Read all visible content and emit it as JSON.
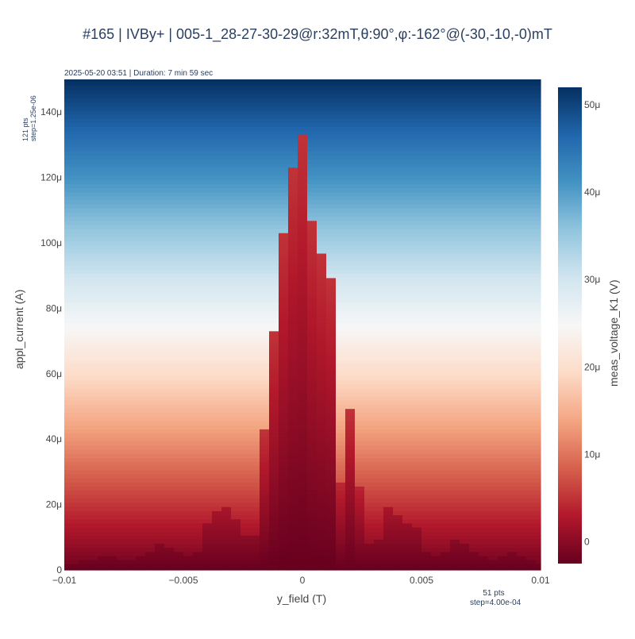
{
  "title": "#165 | IVBy+ | 005-1_28-27-30-29@r:32mT,θ:90°,φ:-162°@(-30,-10,-0)mT",
  "subtitle": "2025-05-20 03:51 | Duration: 7 min 59 sec",
  "y_points_note": [
    "121 pts",
    "step=1.25e-06"
  ],
  "x_points_note": [
    "51 pts",
    "step=4.00e-04"
  ],
  "chart_data": {
    "type": "heatmap",
    "xlabel": "y_field (T)",
    "ylabel": "appl_current (A)",
    "colorbar_label": "meas_voltage_K1 (V)",
    "x_range": [
      -0.01,
      0.01
    ],
    "y_range": [
      0,
      0.00015
    ],
    "x_ticks": [
      -0.01,
      -0.005,
      0,
      0.005,
      0.01
    ],
    "x_tick_labels": [
      "−0.01",
      "−0.005",
      "0",
      "0.005",
      "0.01"
    ],
    "y_ticks": [
      0,
      2e-05,
      4e-05,
      6e-05,
      8e-05,
      0.0001,
      0.00012,
      0.00014
    ],
    "y_tick_labels": [
      "0",
      "20μ",
      "40μ",
      "60μ",
      "80μ",
      "100μ",
      "120μ",
      "140μ"
    ],
    "colorbar_range": [
      -2.5e-06,
      5.2e-05
    ],
    "colorbar_ticks": [
      0,
      1e-05,
      2e-05,
      3e-05,
      4e-05,
      5e-05
    ],
    "colorbar_tick_labels": [
      "0",
      "10μ",
      "20μ",
      "30μ",
      "40μ",
      "50μ"
    ],
    "colorscale": "RdBu",
    "colorscale_stops": [
      "#67001f",
      "#b2182b",
      "#d6604d",
      "#f4a582",
      "#fddbc7",
      "#f7f7f7",
      "#d1e5f0",
      "#92c5de",
      "#4393c3",
      "#2166ac",
      "#053061"
    ],
    "switching_current_vs_field": {
      "x": [
        -0.01,
        -0.0096,
        -0.0092,
        -0.0088,
        -0.0084,
        -0.008,
        -0.0076,
        -0.0072,
        -0.0068,
        -0.0064,
        -0.006,
        -0.0056,
        -0.0052,
        -0.0048,
        -0.0044,
        -0.004,
        -0.0036,
        -0.0032,
        -0.0028,
        -0.0024,
        -0.002,
        -0.0016,
        -0.0012,
        -0.0008,
        -0.0004,
        0,
        0.0004,
        0.0008,
        0.0012,
        0.0016,
        0.002,
        0.0024,
        0.0028,
        0.0032,
        0.0036,
        0.004,
        0.0044,
        0.0048,
        0.0052,
        0.0056,
        0.006,
        0.0064,
        0.0068,
        0.0072,
        0.0076,
        0.008,
        0.0084,
        0.0088,
        0.0092,
        0.0096,
        0.01
      ],
      "y": [
        2e-06,
        2e-06,
        3e-06,
        3e-06,
        4e-06,
        4e-06,
        3e-06,
        3e-06,
        4e-06,
        6e-06,
        8e-06,
        7e-06,
        5e-06,
        4e-06,
        6e-06,
        1.5e-05,
        1.8e-05,
        1.9e-05,
        1.6e-05,
        1e-05,
        1.1e-05,
        4.3e-05,
        7.3e-05,
        0.000103,
        0.000123,
        0.000133,
        0.000107,
        9.7e-05,
        8.9e-05,
        2.7e-05,
        4.9e-05,
        2.5e-05,
        8e-06,
        9e-06,
        1.9e-05,
        1.7e-05,
        1.5e-05,
        1.3e-05,
        6e-06,
        4e-06,
        6e-06,
        9e-06,
        8e-06,
        6e-06,
        4e-06,
        3e-06,
        4e-06,
        5e-06,
        4e-06,
        3e-06,
        2e-06
      ]
    },
    "voltage_model": {
      "below_switching_min": -2.5e-06,
      "below_switching_max": 5e-06,
      "ohmic_slope_V_per_A": 0.36,
      "ohmic_offset_V": -2e-06
    }
  }
}
